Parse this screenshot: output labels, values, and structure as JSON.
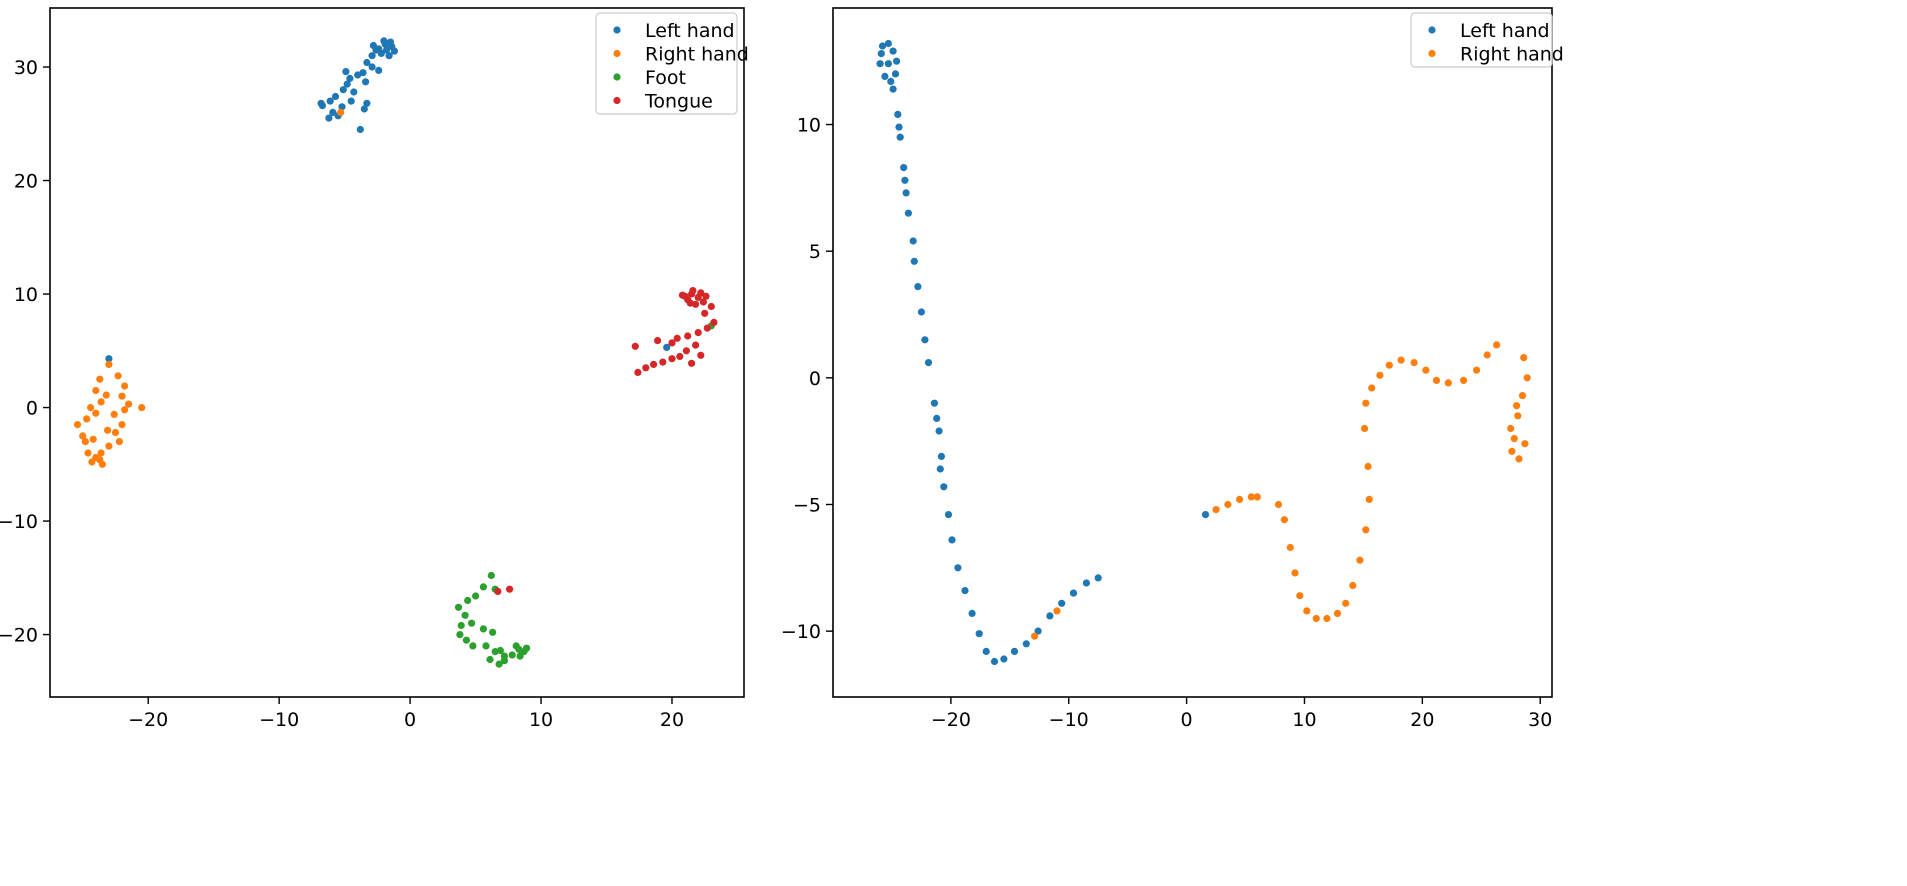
{
  "colors": {
    "Left hand": "#1f77b4",
    "Right hand": "#ff7f0e",
    "Foot": "#2ca02c",
    "Tongue": "#d62728"
  },
  "chart_data": [
    {
      "type": "scatter",
      "title": "",
      "xlabel": "",
      "ylabel": "",
      "xlim": [
        -27.5,
        25.5
      ],
      "ylim": [
        -25.5,
        35.2
      ],
      "xticks": [
        -20,
        -10,
        0,
        10,
        20
      ],
      "yticks": [
        -20,
        -10,
        0,
        10,
        20,
        30
      ],
      "grid": false,
      "legend": {
        "position": "upper-right",
        "entries": [
          "Left hand",
          "Right hand",
          "Foot",
          "Tongue"
        ]
      },
      "series": [
        {
          "name": "Left hand",
          "color": "#1f77b4",
          "points": [
            [
              -2.4,
              31.6
            ],
            [
              -1.9,
              32.0
            ],
            [
              -1.4,
              31.8
            ],
            [
              -1.2,
              31.4
            ],
            [
              -1.6,
              31.0
            ],
            [
              -2.2,
              31.2
            ],
            [
              -2.6,
              31.5
            ],
            [
              -2.0,
              32.3
            ],
            [
              -1.5,
              32.2
            ],
            [
              -2.8,
              31.9
            ],
            [
              -1.8,
              31.5
            ],
            [
              -2.9,
              31.0
            ],
            [
              -3.3,
              30.4
            ],
            [
              -2.9,
              30.0
            ],
            [
              -3.6,
              29.5
            ],
            [
              -4.0,
              29.3
            ],
            [
              -4.6,
              29.0
            ],
            [
              -3.4,
              28.7
            ],
            [
              -4.8,
              28.5
            ],
            [
              -5.1,
              28.0
            ],
            [
              -4.3,
              27.8
            ],
            [
              -5.7,
              27.4
            ],
            [
              -6.1,
              27.0
            ],
            [
              -6.7,
              26.6
            ],
            [
              -5.2,
              26.5
            ],
            [
              -5.9,
              26.0
            ],
            [
              -6.2,
              25.5
            ],
            [
              -5.5,
              25.7
            ],
            [
              -3.5,
              26.3
            ],
            [
              -3.3,
              26.8
            ],
            [
              -3.8,
              24.5
            ],
            [
              -4.5,
              27.0
            ],
            [
              -4.9,
              29.6
            ],
            [
              -2.4,
              29.7
            ],
            [
              -6.8,
              26.8
            ],
            [
              -23.0,
              4.3
            ],
            [
              19.6,
              5.3
            ]
          ]
        },
        {
          "name": "Right hand",
          "color": "#ff7f0e",
          "points": [
            [
              -23.0,
              3.8
            ],
            [
              -23.7,
              2.5
            ],
            [
              -24.0,
              1.5
            ],
            [
              -23.2,
              1.1
            ],
            [
              -22.3,
              2.8
            ],
            [
              -21.8,
              1.9
            ],
            [
              -22.0,
              1.0
            ],
            [
              -21.5,
              0.3
            ],
            [
              -20.5,
              0.0
            ],
            [
              -21.8,
              -0.2
            ],
            [
              -22.6,
              -0.6
            ],
            [
              -22.0,
              -1.5
            ],
            [
              -22.5,
              -2.2
            ],
            [
              -22.2,
              -3.0
            ],
            [
              -23.0,
              -3.4
            ],
            [
              -23.6,
              -4.0
            ],
            [
              -24.0,
              -4.4
            ],
            [
              -23.5,
              -5.0
            ],
            [
              -24.3,
              -4.8
            ],
            [
              -24.6,
              -4.0
            ],
            [
              -24.8,
              -3.0
            ],
            [
              -25.0,
              -2.5
            ],
            [
              -25.4,
              -1.5
            ],
            [
              -24.7,
              -1.0
            ],
            [
              -24.0,
              -0.5
            ],
            [
              -23.6,
              0.5
            ],
            [
              -24.4,
              0.0
            ],
            [
              -23.1,
              -2.0
            ],
            [
              -24.2,
              -2.8
            ],
            [
              -23.7,
              -4.6
            ],
            [
              -5.3,
              26.0
            ]
          ]
        },
        {
          "name": "Foot",
          "color": "#2ca02c",
          "points": [
            [
              6.2,
              -14.8
            ],
            [
              5.6,
              -15.8
            ],
            [
              6.5,
              -16.0
            ],
            [
              5.0,
              -16.6
            ],
            [
              4.4,
              -17.0
            ],
            [
              3.7,
              -17.6
            ],
            [
              4.2,
              -18.3
            ],
            [
              3.9,
              -19.2
            ],
            [
              4.7,
              -19.0
            ],
            [
              5.6,
              -19.5
            ],
            [
              6.3,
              -19.8
            ],
            [
              3.8,
              -20.0
            ],
            [
              4.3,
              -20.5
            ],
            [
              4.8,
              -21.0
            ],
            [
              5.8,
              -21.0
            ],
            [
              6.5,
              -21.5
            ],
            [
              7.2,
              -21.9
            ],
            [
              7.8,
              -21.8
            ],
            [
              8.3,
              -21.3
            ],
            [
              8.7,
              -21.5
            ],
            [
              8.1,
              -21.0
            ],
            [
              8.9,
              -21.2
            ],
            [
              6.1,
              -22.2
            ],
            [
              6.8,
              -22.6
            ],
            [
              7.2,
              -22.3
            ],
            [
              8.4,
              -21.9
            ],
            [
              23.0,
              7.2
            ],
            [
              6.9,
              -21.4
            ]
          ]
        },
        {
          "name": "Tongue",
          "color": "#d62728",
          "points": [
            [
              21.0,
              9.8
            ],
            [
              21.5,
              10.0
            ],
            [
              22.0,
              9.7
            ],
            [
              22.4,
              9.3
            ],
            [
              21.8,
              9.1
            ],
            [
              21.2,
              9.5
            ],
            [
              20.8,
              9.9
            ],
            [
              21.6,
              10.3
            ],
            [
              22.2,
              10.1
            ],
            [
              21.4,
              9.2
            ],
            [
              22.6,
              9.8
            ],
            [
              23.0,
              8.9
            ],
            [
              22.5,
              8.3
            ],
            [
              23.2,
              7.5
            ],
            [
              22.7,
              7.0
            ],
            [
              22.0,
              6.6
            ],
            [
              21.2,
              6.3
            ],
            [
              20.4,
              6.1
            ],
            [
              21.8,
              5.5
            ],
            [
              21.1,
              5.0
            ],
            [
              20.6,
              4.5
            ],
            [
              20.0,
              4.3
            ],
            [
              19.3,
              4.0
            ],
            [
              18.6,
              3.8
            ],
            [
              18.0,
              3.5
            ],
            [
              17.4,
              3.1
            ],
            [
              17.2,
              5.4
            ],
            [
              18.9,
              5.9
            ],
            [
              20.0,
              5.7
            ],
            [
              21.5,
              3.9
            ],
            [
              22.2,
              4.6
            ],
            [
              7.6,
              -16.0
            ],
            [
              6.7,
              -16.2
            ]
          ]
        }
      ]
    },
    {
      "type": "scatter",
      "title": "",
      "xlabel": "",
      "ylabel": "",
      "xlim": [
        -30.0,
        31.0
      ],
      "ylim": [
        -12.6,
        14.6
      ],
      "xticks": [
        -20,
        -10,
        0,
        10,
        20,
        30
      ],
      "yticks": [
        -10,
        -5,
        0,
        5,
        10
      ],
      "grid": false,
      "legend": {
        "position": "upper-right",
        "entries": [
          "Left hand",
          "Right hand"
        ]
      },
      "series": [
        {
          "name": "Left hand",
          "color": "#1f77b4",
          "points": [
            [
              -25.8,
              13.1
            ],
            [
              -25.3,
              13.2
            ],
            [
              -24.9,
              12.9
            ],
            [
              -24.6,
              12.5
            ],
            [
              -24.7,
              12.0
            ],
            [
              -25.1,
              11.7
            ],
            [
              -25.6,
              11.9
            ],
            [
              -26.0,
              12.4
            ],
            [
              -25.9,
              12.8
            ],
            [
              -25.3,
              12.4
            ],
            [
              -24.9,
              11.4
            ],
            [
              -24.5,
              10.4
            ],
            [
              -24.3,
              9.5
            ],
            [
              -24.0,
              8.3
            ],
            [
              -23.8,
              7.3
            ],
            [
              -23.6,
              6.5
            ],
            [
              -23.2,
              5.4
            ],
            [
              -23.1,
              4.6
            ],
            [
              -22.8,
              3.6
            ],
            [
              -22.5,
              2.6
            ],
            [
              -22.2,
              1.5
            ],
            [
              -21.9,
              0.6
            ],
            [
              -21.4,
              -1.0
            ],
            [
              -21.0,
              -2.1
            ],
            [
              -20.8,
              -3.1
            ],
            [
              -20.6,
              -4.3
            ],
            [
              -20.2,
              -5.4
            ],
            [
              -19.9,
              -6.4
            ],
            [
              -19.4,
              -7.5
            ],
            [
              -18.8,
              -8.4
            ],
            [
              -18.2,
              -9.3
            ],
            [
              -17.6,
              -10.1
            ],
            [
              -17.0,
              -10.8
            ],
            [
              -16.3,
              -11.2
            ],
            [
              -15.5,
              -11.1
            ],
            [
              -14.6,
              -10.8
            ],
            [
              -13.6,
              -10.5
            ],
            [
              -12.6,
              -10.0
            ],
            [
              -11.6,
              -9.4
            ],
            [
              -10.6,
              -8.9
            ],
            [
              -9.6,
              -8.5
            ],
            [
              -8.5,
              -8.1
            ],
            [
              -7.5,
              -7.9
            ],
            [
              -21.2,
              -1.6
            ],
            [
              -20.9,
              -3.6
            ],
            [
              -24.4,
              9.9
            ],
            [
              -23.9,
              7.8
            ],
            [
              1.6,
              -5.4
            ]
          ]
        },
        {
          "name": "Right hand",
          "color": "#ff7f0e",
          "points": [
            [
              2.5,
              -5.2
            ],
            [
              3.5,
              -5.0
            ],
            [
              4.5,
              -4.8
            ],
            [
              5.5,
              -4.7
            ],
            [
              6.0,
              -4.7
            ],
            [
              7.8,
              -5.0
            ],
            [
              8.3,
              -5.6
            ],
            [
              8.8,
              -6.7
            ],
            [
              9.2,
              -7.7
            ],
            [
              9.6,
              -8.6
            ],
            [
              10.2,
              -9.2
            ],
            [
              11.0,
              -9.5
            ],
            [
              11.9,
              -9.5
            ],
            [
              12.8,
              -9.3
            ],
            [
              13.5,
              -8.9
            ],
            [
              14.1,
              -8.2
            ],
            [
              14.7,
              -7.2
            ],
            [
              15.2,
              -6.0
            ],
            [
              15.5,
              -4.8
            ],
            [
              15.4,
              -3.5
            ],
            [
              15.1,
              -2.0
            ],
            [
              15.2,
              -1.0
            ],
            [
              15.7,
              -0.4
            ],
            [
              16.4,
              0.1
            ],
            [
              17.2,
              0.5
            ],
            [
              18.2,
              0.7
            ],
            [
              19.3,
              0.6
            ],
            [
              20.3,
              0.3
            ],
            [
              21.2,
              -0.1
            ],
            [
              22.2,
              -0.2
            ],
            [
              23.5,
              -0.1
            ],
            [
              24.6,
              0.3
            ],
            [
              25.5,
              0.9
            ],
            [
              26.3,
              1.3
            ],
            [
              28.6,
              0.8
            ],
            [
              28.9,
              0.0
            ],
            [
              28.5,
              -0.7
            ],
            [
              28.1,
              -1.5
            ],
            [
              27.8,
              -2.4
            ],
            [
              28.2,
              -3.2
            ],
            [
              27.6,
              -2.9
            ],
            [
              27.5,
              -2.0
            ],
            [
              28.0,
              -1.1
            ],
            [
              28.7,
              -2.6
            ],
            [
              -12.9,
              -10.2
            ],
            [
              -11.0,
              -9.2
            ]
          ]
        }
      ]
    }
  ]
}
